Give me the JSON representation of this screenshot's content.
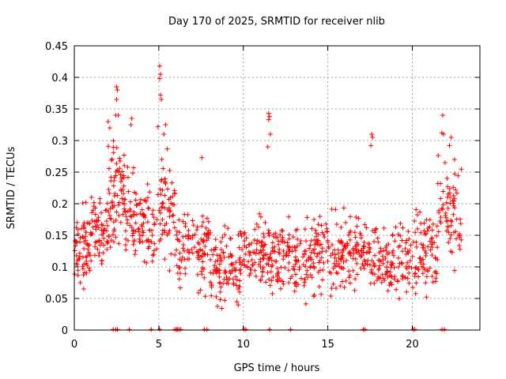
{
  "chart_data": {
    "type": "scatter",
    "title": "Day 170 of 2025, SRMTID for receiver nlib",
    "xlabel": "GPS time / hours",
    "ylabel": "SRMTID / TECUs",
    "xlim": [
      0,
      24
    ],
    "ylim": [
      0,
      0.45
    ],
    "x_ticks": [
      0,
      5,
      10,
      15,
      20
    ],
    "x_tick_labels": [
      "0",
      "5",
      "10",
      "15",
      "20"
    ],
    "y_ticks": [
      0,
      0.05,
      0.1,
      0.15,
      0.2,
      0.25,
      0.3,
      0.35,
      0.4,
      0.45
    ],
    "y_tick_labels": [
      "0",
      "0.05",
      "0.1",
      "0.15",
      "0.2",
      "0.25",
      "0.3",
      "0.35",
      "0.4",
      "0.45"
    ],
    "grid": true,
    "marker": "+",
    "series_color": "#ff0000",
    "zero_points_x": [
      2.3,
      2.45,
      2.55,
      3.25,
      4.55,
      5.05,
      5.95,
      6.05,
      6.1,
      6.2,
      6.3,
      7.7,
      7.85,
      10.05,
      10.15,
      11.55,
      12.8,
      17.1,
      17.2,
      20.05,
      20.15,
      21.75,
      21.9
    ],
    "point_density_segments": [
      {
        "x": [
          0.0,
          1.0
        ],
        "y": [
          0.04,
          0.22
        ],
        "n": 70
      },
      {
        "x": [
          1.0,
          2.0
        ],
        "y": [
          0.07,
          0.24
        ],
        "n": 60
      },
      {
        "x": [
          2.0,
          3.0
        ],
        "y": [
          0.1,
          0.33
        ],
        "n": 75
      },
      {
        "x": [
          3.0,
          4.0
        ],
        "y": [
          0.05,
          0.3
        ],
        "n": 55
      },
      {
        "x": [
          4.0,
          5.0
        ],
        "y": [
          0.08,
          0.25
        ],
        "n": 50
      },
      {
        "x": [
          5.0,
          6.0
        ],
        "y": [
          0.05,
          0.33
        ],
        "n": 60
      },
      {
        "x": [
          6.0,
          8.0
        ],
        "y": [
          0.03,
          0.22
        ],
        "n": 100
      },
      {
        "x": [
          8.0,
          10.0
        ],
        "y": [
          0.02,
          0.18
        ],
        "n": 110
      },
      {
        "x": [
          10.0,
          12.0
        ],
        "y": [
          0.04,
          0.2
        ],
        "n": 110
      },
      {
        "x": [
          12.0,
          14.0
        ],
        "y": [
          0.03,
          0.2
        ],
        "n": 110
      },
      {
        "x": [
          14.0,
          16.0
        ],
        "y": [
          0.03,
          0.21
        ],
        "n": 110
      },
      {
        "x": [
          16.0,
          18.0
        ],
        "y": [
          0.04,
          0.2
        ],
        "n": 100
      },
      {
        "x": [
          18.0,
          20.0
        ],
        "y": [
          0.04,
          0.19
        ],
        "n": 100
      },
      {
        "x": [
          20.0,
          21.5
        ],
        "y": [
          0.03,
          0.22
        ],
        "n": 80
      },
      {
        "x": [
          21.5,
          22.9
        ],
        "y": [
          0.06,
          0.3
        ],
        "n": 70
      }
    ],
    "peak_points": [
      {
        "x": 2.5,
        "y": 0.385
      },
      {
        "x": 2.55,
        "y": 0.38
      },
      {
        "x": 2.5,
        "y": 0.365
      },
      {
        "x": 2.6,
        "y": 0.34
      },
      {
        "x": 2.45,
        "y": 0.34
      },
      {
        "x": 3.4,
        "y": 0.335
      },
      {
        "x": 3.35,
        "y": 0.325
      },
      {
        "x": 2.0,
        "y": 0.33
      },
      {
        "x": 2.1,
        "y": 0.32
      },
      {
        "x": 5.05,
        "y": 0.418
      },
      {
        "x": 5.1,
        "y": 0.405
      },
      {
        "x": 5.05,
        "y": 0.398
      },
      {
        "x": 5.1,
        "y": 0.372
      },
      {
        "x": 5.15,
        "y": 0.365
      },
      {
        "x": 5.4,
        "y": 0.325
      },
      {
        "x": 5.3,
        "y": 0.31
      },
      {
        "x": 4.95,
        "y": 0.322
      },
      {
        "x": 7.55,
        "y": 0.273
      },
      {
        "x": 11.5,
        "y": 0.343
      },
      {
        "x": 11.55,
        "y": 0.338
      },
      {
        "x": 11.5,
        "y": 0.333
      },
      {
        "x": 11.6,
        "y": 0.31
      },
      {
        "x": 11.45,
        "y": 0.29
      },
      {
        "x": 17.6,
        "y": 0.31
      },
      {
        "x": 17.65,
        "y": 0.305
      },
      {
        "x": 17.55,
        "y": 0.292
      },
      {
        "x": 21.8,
        "y": 0.34
      },
      {
        "x": 21.75,
        "y": 0.312
      },
      {
        "x": 21.85,
        "y": 0.31
      },
      {
        "x": 22.3,
        "y": 0.305
      },
      {
        "x": 22.2,
        "y": 0.292
      },
      {
        "x": 22.5,
        "y": 0.27
      }
    ]
  }
}
